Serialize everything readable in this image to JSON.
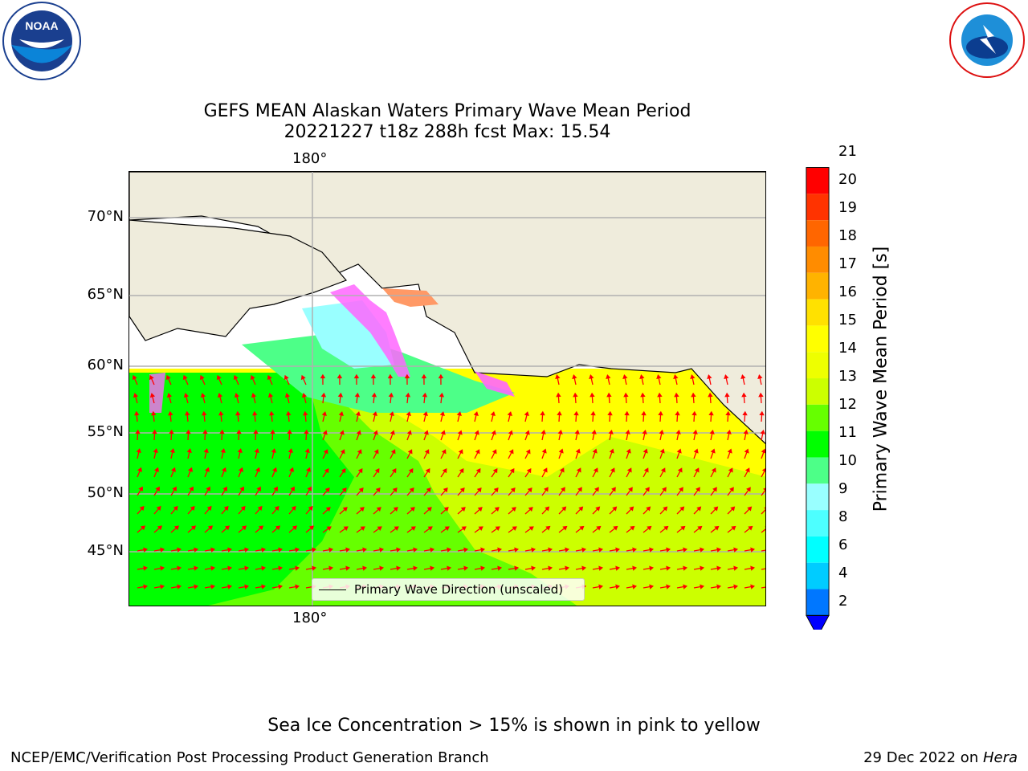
{
  "title": {
    "line1": "GEFS MEAN Alaskan Waters Primary Wave Mean Period",
    "line2": "20221227 t18z 288h fcst   Max: 15.54"
  },
  "map": {
    "lon_labels": [
      "180°",
      "180°"
    ],
    "lat_labels": [
      "70°N",
      "65°N",
      "60°N",
      "55°N",
      "50°N",
      "45°N"
    ],
    "legend_label": "Primary Wave Direction (unscaled)",
    "colors": {
      "land": "#efecdc",
      "ocean_green": "#22e81f",
      "ocean_yellowgreen": "#ccff00",
      "ocean_yellow": "#ffff00",
      "arrow": "#ff0000"
    }
  },
  "colorbar": {
    "label": "Primary Wave Mean Period [s]",
    "ticks": [
      "21",
      "20",
      "19",
      "18",
      "17",
      "16",
      "15",
      "14",
      "13",
      "12",
      "11",
      "10",
      "9",
      "8",
      "6",
      "4",
      "2"
    ],
    "colors": [
      "#ff0000",
      "#ff3300",
      "#ff6600",
      "#ff8c00",
      "#ffb300",
      "#ffe100",
      "#ffff00",
      "#eeff00",
      "#ccff00",
      "#66ff00",
      "#00ff00",
      "#4dff88",
      "#99ffff",
      "#4dffff",
      "#00ffff",
      "#00ccff",
      "#0077ff"
    ],
    "extend_color": "#0000ff"
  },
  "footnote": "Sea Ice Concentration > 15% is shown in pink to yellow",
  "credit": "NCEP/EMC/Verification Post Processing Product Generation Branch",
  "date": {
    "text": "29 Dec 2022 on ",
    "system": "Hera"
  },
  "logos": {
    "left": "NOAA",
    "right": "NATIONAL WEATHER SERVICE"
  }
}
